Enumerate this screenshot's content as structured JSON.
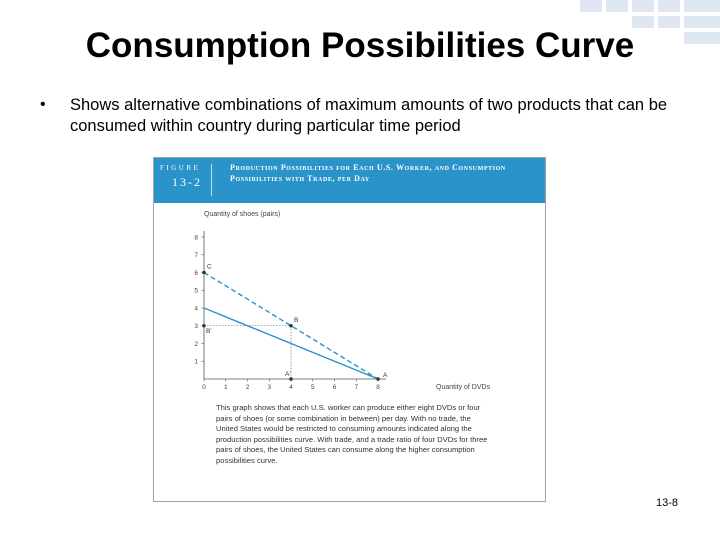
{
  "slide": {
    "title": "Consumption Possibilities Curve",
    "bullet": "•",
    "bullet_text": "Shows alternative combinations of maximum amounts of two products that can be consumed within country during particular time period",
    "slide_number": "13-8"
  },
  "figure": {
    "label_small": "FIGURE",
    "label_number": "13-2",
    "title": "Production Possibilities for Each U.S. Worker, and Consumption Possibilities with Trade, per Day",
    "caption": "This graph shows that each U.S. worker can produce either eight DVDs or four pairs of shoes (or some combination in between) per day. With no trade, the United States would be restricted to consuming amounts indicated along the production possibilities curve. With trade, and a trade ratio of four DVDs for three pairs of shoes, the United States can consume along the higher consumption possibilities curve."
  },
  "chart_data": {
    "type": "line",
    "xlabel": "Quantity of DVDs",
    "ylabel": "Quantity of shoes (pairs)",
    "x_ticks": [
      "0",
      "1",
      "2",
      "3",
      "4",
      "5",
      "6",
      "7",
      "8"
    ],
    "y_ticks": [
      "1",
      "2",
      "3",
      "4",
      "5",
      "6",
      "7",
      "8"
    ],
    "xlim": [
      0,
      8
    ],
    "ylim": [
      0,
      8
    ],
    "series": [
      {
        "style": "solid",
        "color": "#2a93c9",
        "x": [
          0,
          8
        ],
        "y": [
          4,
          0
        ]
      },
      {
        "style": "dashed",
        "color": "#2a93c9",
        "x": [
          0,
          8
        ],
        "y": [
          6,
          0
        ]
      }
    ],
    "points": [
      {
        "label": "C",
        "x": 0,
        "y": 6
      },
      {
        "label": "B",
        "x": 4,
        "y": 3
      },
      {
        "label": "B'",
        "x": 0,
        "y": 3
      },
      {
        "label": "A",
        "x": 8,
        "y": 0
      },
      {
        "label": "A'",
        "x": 4,
        "y": 0
      }
    ],
    "guides": [
      {
        "from": [
          0,
          3
        ],
        "to": [
          4,
          3
        ]
      },
      {
        "from": [
          4,
          3
        ],
        "to": [
          4,
          0
        ]
      }
    ]
  }
}
